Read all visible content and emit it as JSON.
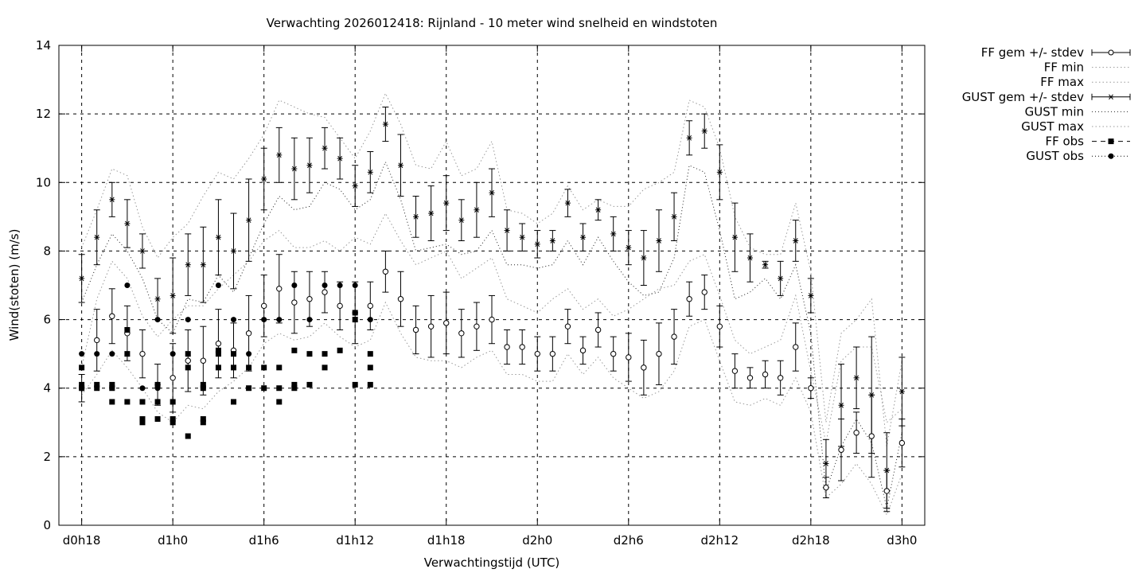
{
  "chart_data": {
    "type": "scatter",
    "title": "Verwachting 2026012418: Rijnland - 10 meter wind snelheid en windstoten",
    "xlabel": "Verwachtingstijd (UTC)",
    "ylabel": "Wind(stoten) (m/s)",
    "ylim": [
      0,
      14
    ],
    "xlim": [
      -1.5,
      55.5
    ],
    "x_tick_labels": [
      "d0h18",
      "d1h0",
      "d1h6",
      "d1h12",
      "d1h18",
      "d2h0",
      "d2h6",
      "d2h12",
      "d2h18",
      "d3h0"
    ],
    "x_tick_positions": [
      0,
      6,
      12,
      18,
      24,
      30,
      36,
      42,
      48,
      54
    ],
    "y_ticks": [
      0,
      2,
      4,
      6,
      8,
      10,
      12,
      14
    ],
    "grid": true,
    "legend_position": "outside-right",
    "legend": [
      "FF gem +/- stdev",
      "FF min",
      "FF max",
      "GUST gem +/- stdev",
      "GUST min",
      "GUST max",
      "FF obs",
      "GUST obs"
    ],
    "ff_mean": [
      4.0,
      5.4,
      6.1,
      5.6,
      5.0,
      4.1,
      4.3,
      4.8,
      4.8,
      5.3,
      5.1,
      5.6,
      6.4,
      6.9,
      6.5,
      6.6,
      6.8,
      6.4,
      6.2,
      6.4,
      7.4,
      6.6,
      5.7,
      5.8,
      5.9,
      5.6,
      5.8,
      6.0,
      5.2,
      5.2,
      5.0,
      5.0,
      5.8,
      5.1,
      5.7,
      5.0,
      4.9,
      4.6,
      5.0,
      5.5,
      6.6,
      6.8,
      5.8,
      4.5,
      4.3,
      4.4,
      4.3,
      5.2,
      4.0,
      1.1,
      2.2,
      2.7,
      2.6,
      1.0,
      2.4
    ],
    "ff_stdev": [
      0.4,
      0.9,
      0.8,
      0.8,
      0.7,
      0.6,
      1.0,
      0.9,
      1.0,
      1.0,
      0.8,
      1.1,
      0.9,
      1.0,
      0.9,
      0.8,
      0.6,
      0.7,
      0.9,
      0.7,
      0.6,
      0.8,
      0.7,
      0.9,
      0.9,
      0.7,
      0.7,
      0.7,
      0.5,
      0.5,
      0.5,
      0.5,
      0.5,
      0.4,
      0.5,
      0.5,
      0.7,
      0.8,
      0.9,
      0.8,
      0.5,
      0.5,
      0.6,
      0.5,
      0.3,
      0.4,
      0.5,
      0.7,
      0.3,
      0.3,
      0.9,
      0.6,
      1.2,
      0.6,
      0.7
    ],
    "ff_min": [
      3.8,
      4.4,
      5.1,
      4.6,
      4.0,
      3.3,
      3.0,
      3.5,
      3.4,
      3.9,
      4.2,
      4.6,
      5.3,
      5.6,
      5.4,
      5.5,
      5.9,
      5.5,
      5.2,
      5.4,
      6.5,
      5.6,
      4.9,
      4.8,
      4.8,
      4.6,
      4.9,
      5.1,
      4.4,
      4.4,
      4.2,
      4.2,
      5.0,
      4.4,
      4.9,
      4.3,
      4.0,
      3.7,
      3.9,
      4.5,
      5.8,
      6.0,
      4.8,
      3.6,
      3.5,
      3.7,
      3.5,
      4.3,
      3.3,
      0.8,
      1.2,
      1.8,
      1.2,
      0.3,
      1.5
    ],
    "ff_max": [
      4.6,
      6.6,
      7.7,
      7.2,
      6.1,
      5.5,
      6.0,
      6.4,
      6.4,
      6.9,
      7.3,
      7.7,
      8.3,
      8.6,
      8.1,
      8.1,
      8.3,
      8.0,
      8.4,
      8.2,
      9.1,
      8.3,
      7.6,
      7.8,
      8.0,
      7.2,
      7.5,
      7.8,
      6.6,
      6.4,
      6.2,
      6.6,
      6.9,
      6.3,
      6.6,
      6.1,
      6.3,
      6.6,
      6.9,
      7.0,
      7.7,
      7.9,
      6.7,
      5.4,
      5.0,
      5.2,
      5.4,
      6.7,
      4.5,
      2.4,
      4.8,
      5.2,
      5.2,
      3.0,
      3.4
    ],
    "gust_mean": [
      7.2,
      8.4,
      9.5,
      8.8,
      8.0,
      6.6,
      6.7,
      7.6,
      7.6,
      8.4,
      8.0,
      8.9,
      10.1,
      10.8,
      10.4,
      10.5,
      11.0,
      10.7,
      9.9,
      10.3,
      11.7,
      10.5,
      9.0,
      9.1,
      9.4,
      8.9,
      9.2,
      9.7,
      8.6,
      8.4,
      8.2,
      8.3,
      9.4,
      8.4,
      9.2,
      8.5,
      8.1,
      7.8,
      8.3,
      9.0,
      11.3,
      11.5,
      10.3,
      8.4,
      7.8,
      7.6,
      7.2,
      8.3,
      6.7,
      1.8,
      3.5,
      4.3,
      3.8,
      1.6,
      3.9
    ],
    "gust_stdev": [
      0.7,
      0.8,
      0.5,
      0.7,
      0.5,
      0.6,
      1.1,
      0.9,
      1.1,
      1.1,
      1.1,
      1.2,
      0.9,
      0.8,
      0.9,
      0.8,
      0.6,
      0.6,
      0.6,
      0.6,
      0.5,
      0.9,
      0.6,
      0.8,
      0.8,
      0.6,
      0.8,
      0.7,
      0.6,
      0.4,
      0.4,
      0.3,
      0.4,
      0.4,
      0.3,
      0.5,
      0.5,
      0.8,
      0.9,
      0.7,
      0.5,
      0.5,
      0.8,
      1.0,
      0.7,
      0.1,
      0.5,
      0.6,
      0.5,
      0.7,
      1.2,
      0.9,
      1.7,
      1.1,
      1.0
    ],
    "gust_min": [
      6.5,
      7.6,
      8.5,
      8.0,
      7.2,
      6.0,
      5.6,
      6.6,
      6.5,
      7.3,
      6.8,
      7.8,
      8.8,
      9.6,
      9.2,
      9.3,
      10.0,
      9.8,
      9.2,
      9.5,
      10.6,
      9.5,
      8.0,
      8.1,
      8.2,
      7.9,
      8.0,
      8.6,
      7.6,
      7.6,
      7.5,
      7.6,
      8.3,
      7.6,
      8.4,
      7.7,
      7.1,
      6.7,
      6.8,
      7.8,
      10.5,
      10.3,
      8.6,
      6.6,
      6.8,
      7.2,
      6.6,
      7.6,
      5.6,
      1.0,
      2.3,
      3.1,
      2.4,
      0.5,
      2.7
    ],
    "gust_max": [
      8.1,
      9.2,
      10.4,
      10.2,
      8.7,
      7.8,
      8.4,
      8.8,
      9.6,
      10.3,
      10.1,
      10.7,
      11.4,
      12.4,
      12.2,
      12.0,
      11.9,
      11.3,
      10.7,
      11.5,
      12.6,
      11.7,
      10.5,
      10.4,
      11.2,
      10.2,
      10.4,
      11.2,
      9.2,
      9.1,
      8.8,
      9.1,
      9.9,
      9.2,
      9.5,
      9.3,
      9.3,
      9.8,
      10.0,
      10.3,
      12.4,
      12.2,
      11.0,
      9.0,
      8.1,
      7.9,
      7.9,
      9.4,
      7.4,
      3.0,
      5.6,
      6.0,
      6.6,
      2.3,
      4.8
    ],
    "ff_obs": [
      {
        "x": 0,
        "y": [
          4.1,
          4.0,
          4.6
        ]
      },
      {
        "x": 1,
        "y": [
          4.1,
          4.0
        ]
      },
      {
        "x": 2,
        "y": [
          4.1,
          4.0,
          3.6
        ]
      },
      {
        "x": 3,
        "y": [
          5.7,
          5.0,
          3.6
        ]
      },
      {
        "x": 4,
        "y": [
          3.1,
          3.0,
          3.6
        ]
      },
      {
        "x": 5,
        "y": [
          4.1,
          3.6,
          3.1
        ]
      },
      {
        "x": 6,
        "y": [
          3.6,
          3.1,
          3.0
        ]
      },
      {
        "x": 7,
        "y": [
          5.0,
          4.6,
          2.6
        ]
      },
      {
        "x": 8,
        "y": [
          4.1,
          4.0,
          3.1,
          3.0
        ]
      },
      {
        "x": 9,
        "y": [
          5.1,
          5.0,
          4.6
        ]
      },
      {
        "x": 10,
        "y": [
          5.0,
          4.6,
          3.6
        ]
      },
      {
        "x": 11,
        "y": [
          4.6,
          4.0
        ]
      },
      {
        "x": 12,
        "y": [
          4.6,
          4.0
        ]
      },
      {
        "x": 13,
        "y": [
          4.6,
          4.0,
          3.6
        ]
      },
      {
        "x": 14,
        "y": [
          5.1,
          4.1,
          4.0
        ]
      },
      {
        "x": 15,
        "y": [
          5.0,
          4.1
        ]
      },
      {
        "x": 16,
        "y": [
          5.0,
          4.6
        ]
      },
      {
        "x": 17,
        "y": [
          5.1
        ]
      },
      {
        "x": 18,
        "y": [
          6.2,
          6.0,
          4.1
        ]
      },
      {
        "x": 19,
        "y": [
          5.0,
          4.6,
          4.1
        ]
      }
    ],
    "gust_obs": [
      {
        "x": 0,
        "y": [
          5.0
        ]
      },
      {
        "x": 1,
        "y": [
          5.0
        ]
      },
      {
        "x": 2,
        "y": [
          5.0
        ]
      },
      {
        "x": 3,
        "y": [
          7.0
        ]
      },
      {
        "x": 4,
        "y": [
          4.0
        ]
      },
      {
        "x": 5,
        "y": [
          6.0,
          4.0
        ]
      },
      {
        "x": 6,
        "y": [
          5.0
        ]
      },
      {
        "x": 7,
        "y": [
          6.0
        ]
      },
      {
        "x": 8,
        "y": [
          4.0
        ]
      },
      {
        "x": 9,
        "y": [
          7.0
        ]
      },
      {
        "x": 10,
        "y": [
          6.0
        ]
      },
      {
        "x": 11,
        "y": [
          5.0
        ]
      },
      {
        "x": 12,
        "y": [
          6.0
        ]
      },
      {
        "x": 13,
        "y": [
          6.0
        ]
      },
      {
        "x": 14,
        "y": [
          7.0
        ]
      },
      {
        "x": 15,
        "y": [
          6.0
        ]
      },
      {
        "x": 16,
        "y": [
          7.0
        ]
      },
      {
        "x": 17,
        "y": [
          7.0
        ]
      },
      {
        "x": 18,
        "y": [
          7.0
        ]
      },
      {
        "x": 19,
        "y": [
          6.0
        ]
      }
    ]
  }
}
